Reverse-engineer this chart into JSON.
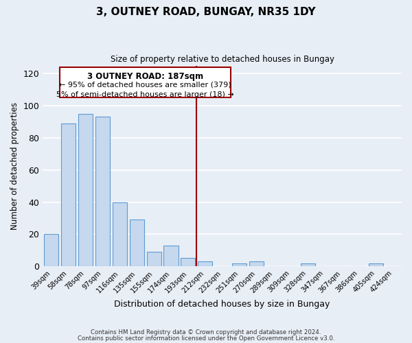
{
  "title": "3, OUTNEY ROAD, BUNGAY, NR35 1DY",
  "subtitle": "Size of property relative to detached houses in Bungay",
  "xlabel": "Distribution of detached houses by size in Bungay",
  "ylabel": "Number of detached properties",
  "categories": [
    "39sqm",
    "58sqm",
    "78sqm",
    "97sqm",
    "116sqm",
    "135sqm",
    "155sqm",
    "174sqm",
    "193sqm",
    "212sqm",
    "232sqm",
    "251sqm",
    "270sqm",
    "289sqm",
    "309sqm",
    "328sqm",
    "347sqm",
    "367sqm",
    "386sqm",
    "405sqm",
    "424sqm"
  ],
  "values": [
    20,
    89,
    95,
    93,
    40,
    29,
    9,
    13,
    5,
    3,
    0,
    2,
    3,
    0,
    0,
    2,
    0,
    0,
    0,
    2,
    0
  ],
  "bar_color": "#c5d8ed",
  "bar_edge_color": "#5b9bd5",
  "background_color": "#e8eef6",
  "grid_color": "#d0d8e4",
  "ylim": [
    0,
    125
  ],
  "yticks": [
    0,
    20,
    40,
    60,
    80,
    100,
    120
  ],
  "vline_x": 8.5,
  "vline_color": "#990000",
  "legend_title": "3 OUTNEY ROAD: 187sqm",
  "legend_line1": "← 95% of detached houses are smaller (379)",
  "legend_line2": "5% of semi-detached houses are larger (18) →",
  "legend_box_color": "white",
  "legend_box_edge_color": "#990000",
  "footer_line1": "Contains HM Land Registry data © Crown copyright and database right 2024.",
  "footer_line2": "Contains public sector information licensed under the Open Government Licence v3.0."
}
